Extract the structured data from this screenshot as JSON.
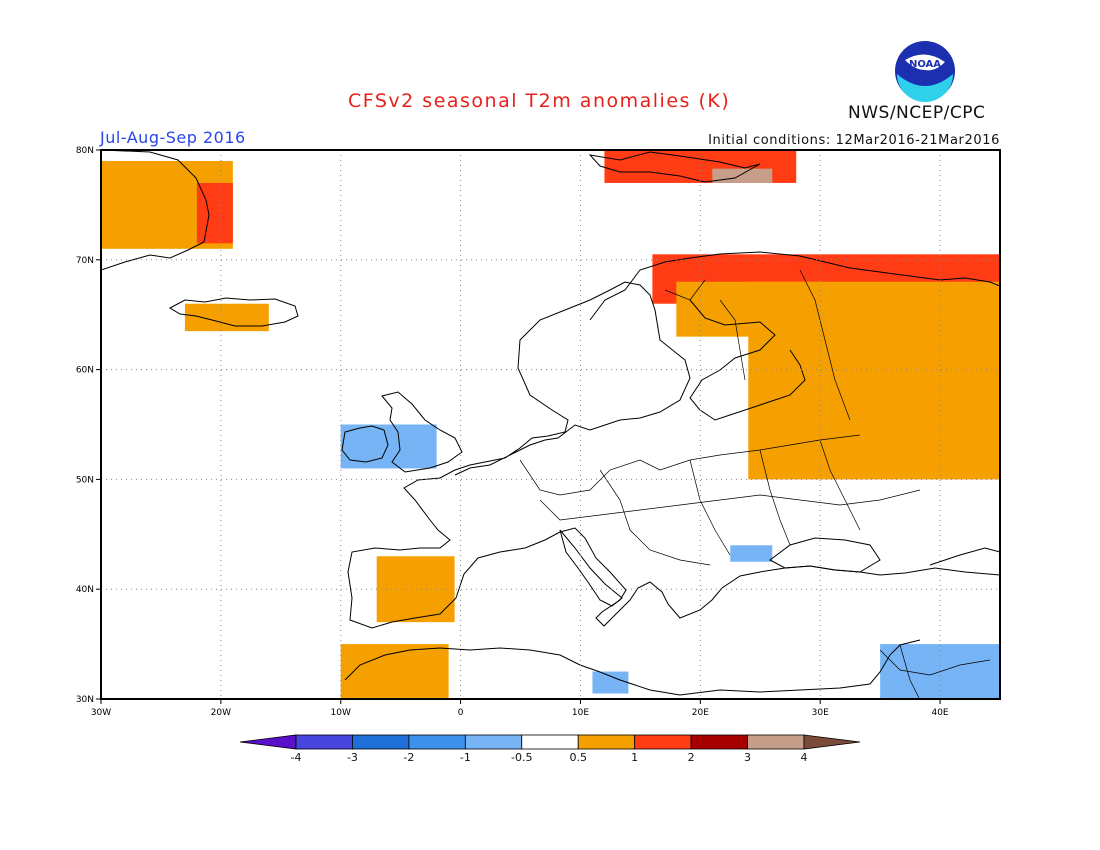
{
  "title": "CFSv2 seasonal T2m anomalies (K)",
  "season": "Jul-Aug-Sep 2016",
  "initial_conditions": "Initial conditions: 12Mar2016-21Mar2016",
  "organization": "NWS/NCEP/CPC",
  "logo": {
    "icon": "noaa-logo",
    "text": "NOAA"
  },
  "map": {
    "lon_range": [
      -30,
      45
    ],
    "lat_range": [
      30,
      80
    ],
    "lon_ticks": [
      {
        "value": -30,
        "label": "30W"
      },
      {
        "value": -20,
        "label": "20W"
      },
      {
        "value": -10,
        "label": "10W"
      },
      {
        "value": 0,
        "label": "0"
      },
      {
        "value": 10,
        "label": "10E"
      },
      {
        "value": 20,
        "label": "20E"
      },
      {
        "value": 30,
        "label": "30E"
      },
      {
        "value": 40,
        "label": "40E"
      }
    ],
    "lat_ticks": [
      {
        "value": 30,
        "label": "30N"
      },
      {
        "value": 40,
        "label": "40N"
      },
      {
        "value": 50,
        "label": "50N"
      },
      {
        "value": 60,
        "label": "60N"
      },
      {
        "value": 70,
        "label": "70N"
      },
      {
        "value": 80,
        "label": "80N"
      }
    ],
    "grid": true,
    "anomaly_regions": [
      {
        "name": "east-greenland",
        "level": "0.5 to 1",
        "color": "#f5a000",
        "lon": [
          -30,
          -19
        ],
        "lat": [
          71,
          79
        ]
      },
      {
        "name": "east-greenland-warm",
        "level": "1 to 2",
        "color": "#ff3c14",
        "lon": [
          -22,
          -19
        ],
        "lat": [
          71.5,
          77
        ]
      },
      {
        "name": "iceland",
        "level": "0.5 to 1",
        "color": "#f5a000",
        "lon": [
          -23,
          -16
        ],
        "lat": [
          63.5,
          66
        ]
      },
      {
        "name": "svalbard",
        "level": "1 to 2",
        "color": "#ff3c14",
        "lon": [
          12,
          28
        ],
        "lat": [
          77,
          80
        ]
      },
      {
        "name": "svalbard-east",
        "level": "3 to 4",
        "color": "#c79e8a",
        "lon": [
          21,
          26
        ],
        "lat": [
          77,
          78.3
        ]
      },
      {
        "name": "northern-scandinavia-russia",
        "level": "1 to 2",
        "color": "#ff3c14",
        "lon": [
          16,
          45
        ],
        "lat": [
          66,
          70.5
        ]
      },
      {
        "name": "northwest-russia",
        "level": "0.5 to 1",
        "color": "#f5a000",
        "lon": [
          24,
          45
        ],
        "lat": [
          50,
          68
        ]
      },
      {
        "name": "finland",
        "level": "0.5 to 1",
        "color": "#f5a000",
        "lon": [
          18,
          30
        ],
        "lat": [
          63,
          68
        ]
      },
      {
        "name": "iberia",
        "level": "0.5 to 1",
        "color": "#f5a000",
        "lon": [
          -7,
          -0.5
        ],
        "lat": [
          37,
          43
        ]
      },
      {
        "name": "northwest-africa",
        "level": "0.5 to 1",
        "color": "#f5a000",
        "lon": [
          -10,
          -1
        ],
        "lat": [
          30,
          35
        ]
      },
      {
        "name": "ireland-britain",
        "level": "-1 to -0.5",
        "color": "#76b4f5",
        "lon": [
          -10,
          -2
        ],
        "lat": [
          51,
          55
        ]
      },
      {
        "name": "balkans",
        "level": "-1 to -0.5",
        "color": "#76b4f5",
        "lon": [
          22.5,
          26
        ],
        "lat": [
          42.5,
          44
        ]
      },
      {
        "name": "middle-east",
        "level": "-1 to -0.5",
        "color": "#76b4f5",
        "lon": [
          35,
          45
        ],
        "lat": [
          30,
          35
        ]
      },
      {
        "name": "libya-coast",
        "level": "-1 to -0.5",
        "color": "#76b4f5",
        "lon": [
          11,
          14
        ],
        "lat": [
          30.5,
          32.5
        ]
      }
    ]
  },
  "colorbar": {
    "bounds": [
      "-4",
      "-3",
      "-2",
      "-1",
      "-0.5",
      "0.5",
      "1",
      "2",
      "3",
      "4"
    ],
    "colors": [
      "#5a10c8",
      "#4646dc",
      "#1f6fd8",
      "#3c91eb",
      "#76b4f5",
      "#ffffff",
      "#f5a000",
      "#ff3c14",
      "#a60000",
      "#c79e8a",
      "#7b4b3a"
    ]
  }
}
